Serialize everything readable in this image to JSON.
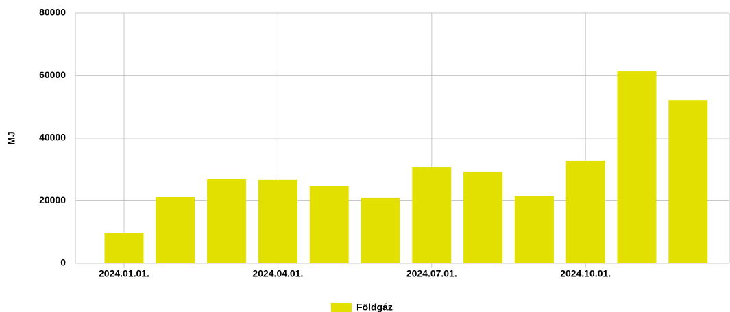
{
  "chart_data": {
    "type": "bar",
    "y_label": "MJ",
    "categories": [
      "2024.01.01.",
      null,
      null,
      "2024.04.01.",
      null,
      null,
      "2024.07.01.",
      null,
      null,
      "2024.10.01.",
      null,
      null
    ],
    "series": [
      {
        "name": "Földgáz",
        "color": "#e2e000",
        "values": [
          9800,
          21200,
          26900,
          26700,
          24700,
          21000,
          30800,
          29300,
          21600,
          32800,
          61400,
          52200
        ]
      }
    ],
    "ylim": [
      0,
      80000
    ],
    "yticks": [
      0,
      20000,
      40000,
      60000,
      80000
    ],
    "grid": true,
    "legend": "bottom"
  }
}
